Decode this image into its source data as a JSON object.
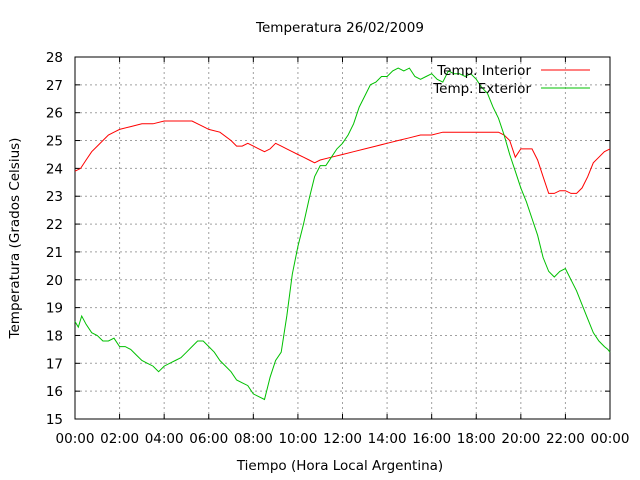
{
  "chart_data": {
    "type": "line",
    "title": "Temperatura 26/02/2009",
    "xlabel": "Tiempo (Hora Local Argentina)",
    "ylabel": "Temperatura (Grados Celsius)",
    "xlim": [
      0,
      24
    ],
    "ylim": [
      15,
      28
    ],
    "x_tick_labels": [
      "00:00",
      "02:00",
      "04:00",
      "06:00",
      "08:00",
      "10:00",
      "12:00",
      "14:00",
      "16:00",
      "18:00",
      "20:00",
      "22:00",
      "00:00"
    ],
    "y_ticks": [
      15,
      16,
      17,
      18,
      19,
      20,
      21,
      22,
      23,
      24,
      25,
      26,
      27,
      28
    ],
    "grid": true,
    "legend_position": "top-right",
    "series": [
      {
        "name": "Temp. Interior",
        "color": "#ff0000",
        "x": [
          0,
          0.25,
          0.5,
          0.75,
          1,
          1.25,
          1.5,
          1.75,
          2,
          2.5,
          3,
          3.5,
          4,
          4.5,
          5,
          5.25,
          5.5,
          5.75,
          6,
          6.5,
          7,
          7.25,
          7.5,
          7.75,
          8,
          8.25,
          8.5,
          8.75,
          9,
          9.25,
          9.5,
          9.75,
          10,
          10.25,
          10.5,
          10.75,
          11,
          11.5,
          12,
          12.5,
          13,
          13.5,
          14,
          14.5,
          15,
          15.5,
          16,
          16.5,
          17,
          17.5,
          18,
          18.5,
          19,
          19.25,
          19.5,
          19.75,
          20,
          20.25,
          20.5,
          20.75,
          21,
          21.25,
          21.5,
          21.75,
          22,
          22.25,
          22.5,
          22.75,
          23,
          23.25,
          23.5,
          23.75,
          24
        ],
        "y": [
          23.9,
          24.0,
          24.3,
          24.6,
          24.8,
          25.0,
          25.2,
          25.3,
          25.4,
          25.5,
          25.6,
          25.6,
          25.7,
          25.7,
          25.7,
          25.7,
          25.6,
          25.5,
          25.4,
          25.3,
          25.0,
          24.8,
          24.8,
          24.9,
          24.8,
          24.7,
          24.6,
          24.7,
          24.9,
          24.8,
          24.7,
          24.6,
          24.5,
          24.4,
          24.3,
          24.2,
          24.3,
          24.4,
          24.5,
          24.6,
          24.7,
          24.8,
          24.9,
          25.0,
          25.1,
          25.2,
          25.2,
          25.3,
          25.3,
          25.3,
          25.3,
          25.3,
          25.3,
          25.2,
          25.0,
          24.4,
          24.7,
          24.7,
          24.7,
          24.3,
          23.7,
          23.1,
          23.1,
          23.2,
          23.2,
          23.1,
          23.1,
          23.3,
          23.7,
          24.2,
          24.4,
          24.6,
          24.7
        ]
      },
      {
        "name": "Temp. Exterior",
        "color": "#00c000",
        "x": [
          0,
          0.15,
          0.3,
          0.5,
          0.75,
          1,
          1.25,
          1.5,
          1.75,
          2,
          2.25,
          2.5,
          2.75,
          3,
          3.25,
          3.5,
          3.75,
          4,
          4.25,
          4.5,
          4.75,
          5,
          5.25,
          5.5,
          5.75,
          6,
          6.25,
          6.5,
          6.75,
          7,
          7.25,
          7.5,
          7.75,
          8,
          8.25,
          8.5,
          8.75,
          9,
          9.25,
          9.5,
          9.75,
          10,
          10.25,
          10.5,
          10.75,
          11,
          11.25,
          11.5,
          11.75,
          12,
          12.25,
          12.5,
          12.75,
          13,
          13.25,
          13.5,
          13.75,
          14,
          14.25,
          14.5,
          14.75,
          15,
          15.25,
          15.5,
          15.75,
          16,
          16.25,
          16.5,
          16.75,
          17,
          17.25,
          17.5,
          17.75,
          18,
          18.25,
          18.5,
          18.75,
          19,
          19.25,
          19.5,
          19.75,
          20,
          20.25,
          20.5,
          20.75,
          21,
          21.25,
          21.5,
          21.75,
          22,
          22.25,
          22.5,
          22.75,
          23,
          23.25,
          23.5,
          23.75,
          23.9,
          24
        ],
        "y": [
          18.5,
          18.3,
          18.7,
          18.4,
          18.1,
          18.0,
          17.8,
          17.8,
          17.9,
          17.6,
          17.6,
          17.5,
          17.3,
          17.1,
          17.0,
          16.9,
          16.7,
          16.9,
          17.0,
          17.1,
          17.2,
          17.4,
          17.6,
          17.8,
          17.8,
          17.6,
          17.4,
          17.1,
          16.9,
          16.7,
          16.4,
          16.3,
          16.2,
          15.9,
          15.8,
          15.7,
          16.5,
          17.1,
          17.4,
          18.7,
          20.2,
          21.2,
          22.0,
          22.9,
          23.7,
          24.1,
          24.1,
          24.4,
          24.7,
          24.9,
          25.2,
          25.6,
          26.2,
          26.6,
          27.0,
          27.1,
          27.3,
          27.3,
          27.5,
          27.6,
          27.5,
          27.6,
          27.3,
          27.2,
          27.3,
          27.4,
          27.2,
          27.1,
          27.5,
          27.4,
          27.4,
          27.3,
          27.4,
          27.2,
          26.9,
          26.7,
          26.2,
          25.8,
          25.2,
          24.5,
          23.9,
          23.3,
          22.8,
          22.2,
          21.6,
          20.8,
          20.3,
          20.1,
          20.3,
          20.4,
          20.0,
          19.6,
          19.1,
          18.6,
          18.1,
          17.8,
          17.6,
          17.5,
          17.4
        ]
      }
    ]
  }
}
